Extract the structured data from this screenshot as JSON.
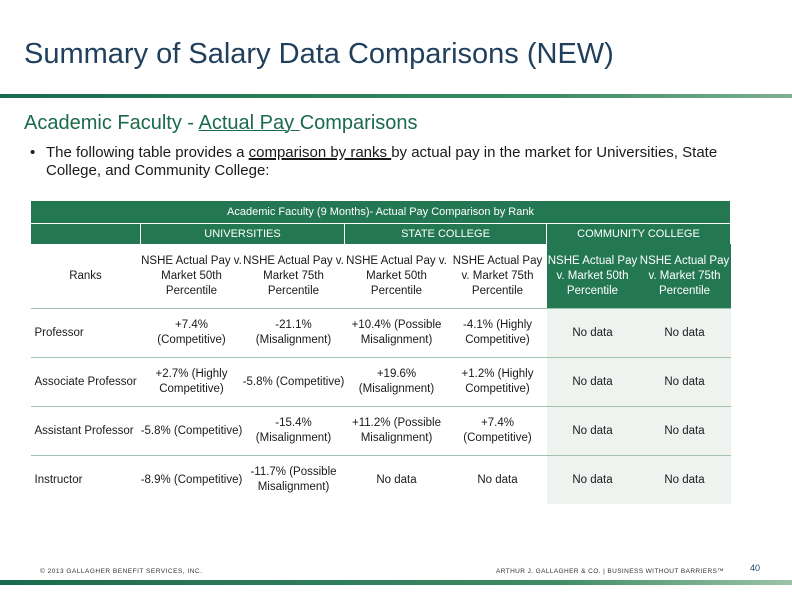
{
  "slide": {
    "title": "Summary of Salary Data Comparisons (NEW)",
    "subtitle_pre": "Academic Faculty - ",
    "subtitle_u": "Actual Pay ",
    "subtitle_post": "Comparisons",
    "bullet_symbol": "•",
    "bullet_pre": "The following table provides a ",
    "bullet_u": "comparison by ranks ",
    "bullet_post": "by actual pay in the market for Universities, State College, and Community College:",
    "page_number": "40"
  },
  "table": {
    "title": "Academic Faculty (9 Months)- Actual Pay Comparison by Rank",
    "groups": [
      "UNIVERSITIES",
      "STATE COLLEGE",
      "COMMUNITY COLLEGE"
    ],
    "rank_header": "Ranks",
    "subheaders": [
      "NSHE Actual Pay v. Market 50th Percentile",
      "NSHE Actual Pay v. Market 75th Percentile",
      "NSHE Actual Pay v. Market 50th Percentile",
      "NSHE Actual Pay v. Market 75th Percentile",
      "NSHE Actual Pay v. Market 50th Percentile",
      "NSHE Actual Pay v. Market 75th Percentile"
    ],
    "rows": [
      {
        "rank": "Professor",
        "cells": [
          "+7.4% (Competitive)",
          "-21.1% (Misalignment)",
          "+10.4% (Possible Misalignment)",
          "-4.1% (Highly Competitive)",
          "No data",
          "No data"
        ]
      },
      {
        "rank": "Associate Professor",
        "cells": [
          "+2.7% (Highly Competitive)",
          "-5.8% (Competitive)",
          "+19.6% (Misalignment)",
          "+1.2% (Highly Competitive)",
          "No data",
          "No data"
        ]
      },
      {
        "rank": "Assistant Professor",
        "cells": [
          "-5.8% (Competitive)",
          "-15.4% (Misalignment)",
          "+11.2% (Possible Misalignment)",
          "+7.4% (Competitive)",
          "No data",
          "No data"
        ]
      },
      {
        "rank": "Instructor",
        "cells": [
          "-8.9% (Competitive)",
          "-11.7% (Possible Misalignment)",
          "No data",
          "No data",
          "No data",
          "No data"
        ]
      }
    ]
  },
  "footer": {
    "left": "© 2013 GALLAGHER BENEFIT SERVICES, INC.",
    "right": "ARTHUR J. GALLAGHER & CO. | BUSINESS WITHOUT BARRIERS™"
  },
  "colors": {
    "header_green": "#237851",
    "title_blue": "#1f3f5c",
    "subtitle_green": "#1b6a4b"
  }
}
